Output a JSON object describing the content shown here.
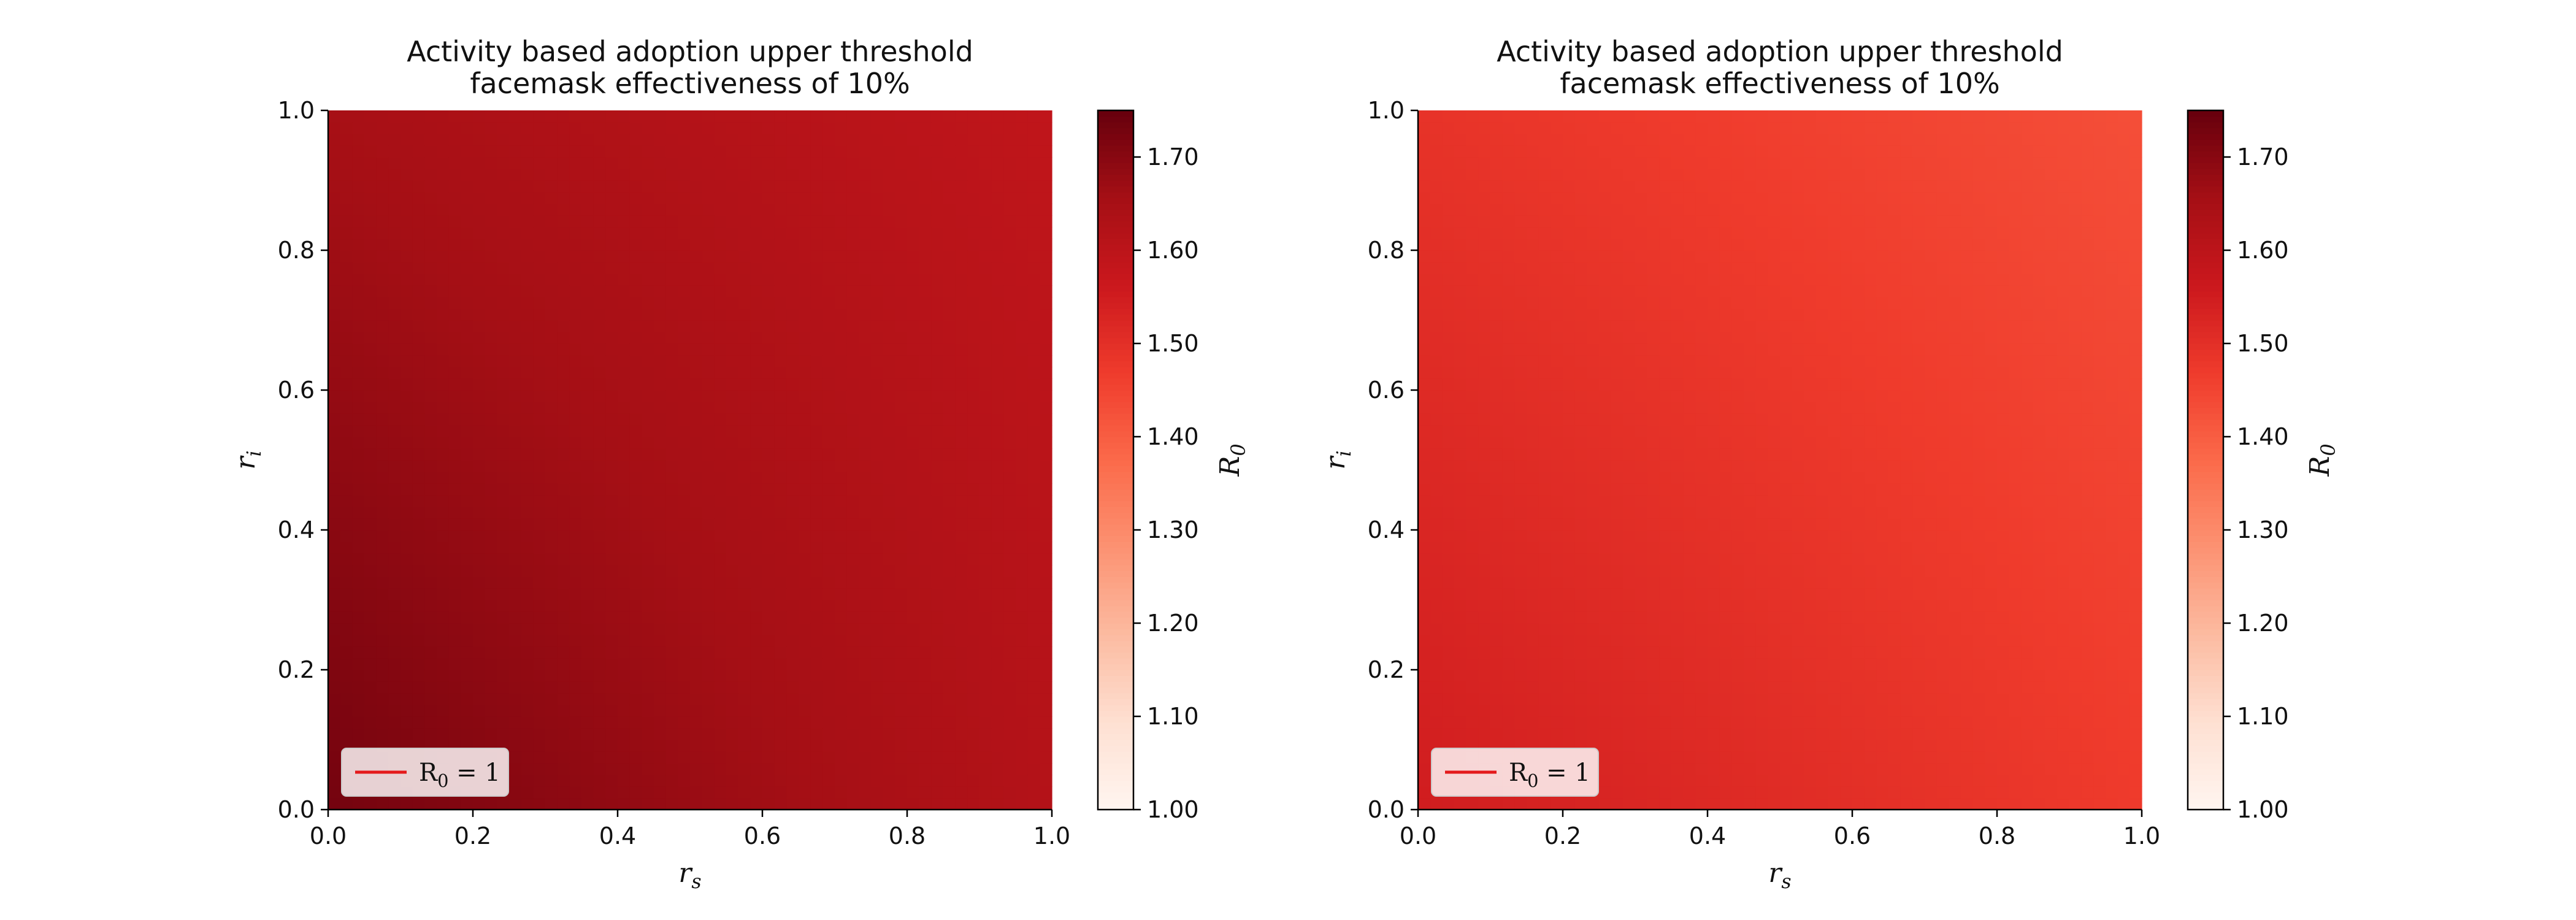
{
  "chart_data": [
    {
      "type": "heatmap",
      "title_line1": "Activity based adoption upper threshold",
      "title_line2": "facemask effectiveness of 10%",
      "xlabel_base": "r",
      "xlabel_sub": "s",
      "ylabel_base": "r",
      "ylabel_sub": "i",
      "xlim": [
        0.0,
        1.0
      ],
      "ylim": [
        0.0,
        1.0
      ],
      "x_ticks": [
        "0.0",
        "0.2",
        "0.4",
        "0.6",
        "0.8",
        "1.0"
      ],
      "y_ticks": [
        "0.0",
        "0.2",
        "0.4",
        "0.6",
        "0.8",
        "1.0"
      ],
      "field": {
        "at_origin": 1.73,
        "at_x1": 1.62,
        "at_y1": 1.65,
        "at_x1y1": 1.59
      },
      "legend": {
        "label_base": "R",
        "label_sub": "0",
        "label_rest": " = 1",
        "line_color": "#e41a1c",
        "location": "lower left"
      },
      "colorbar": {
        "label_base": "R",
        "label_sub": "0",
        "vmin": 1.0,
        "vmax": 1.75,
        "ticks": [
          "1.00",
          "1.10",
          "1.20",
          "1.30",
          "1.40",
          "1.50",
          "1.60",
          "1.70"
        ]
      }
    },
    {
      "type": "heatmap",
      "title_line1": "Activity based adoption upper threshold",
      "title_line2": "facemask effectiveness of 10%",
      "xlabel_base": "r",
      "xlabel_sub": "s",
      "ylabel_base": "r",
      "ylabel_sub": "i",
      "xlim": [
        0.0,
        1.0
      ],
      "ylim": [
        0.0,
        1.0
      ],
      "x_ticks": [
        "0.0",
        "0.2",
        "0.4",
        "0.6",
        "0.8",
        "1.0"
      ],
      "y_ticks": [
        "0.0",
        "0.2",
        "0.4",
        "0.6",
        "0.8",
        "1.0"
      ],
      "field": {
        "at_origin": 1.55,
        "at_x1": 1.47,
        "at_y1": 1.49,
        "at_x1y1": 1.43
      },
      "legend": {
        "label_base": "R",
        "label_sub": "0",
        "label_rest": " = 1",
        "line_color": "#e41a1c",
        "location": "lower left"
      },
      "colorbar": {
        "label_base": "R",
        "label_sub": "0",
        "vmin": 1.0,
        "vmax": 1.75,
        "ticks": [
          "1.00",
          "1.10",
          "1.20",
          "1.30",
          "1.40",
          "1.50",
          "1.60",
          "1.70"
        ]
      }
    }
  ],
  "colormap": {
    "name": "Reds",
    "stops": [
      "#fff5f0",
      "#fee0d2",
      "#fcbba1",
      "#fc9272",
      "#fb6a4a",
      "#ef3b2c",
      "#cb181d",
      "#a50f15",
      "#67000d"
    ]
  }
}
